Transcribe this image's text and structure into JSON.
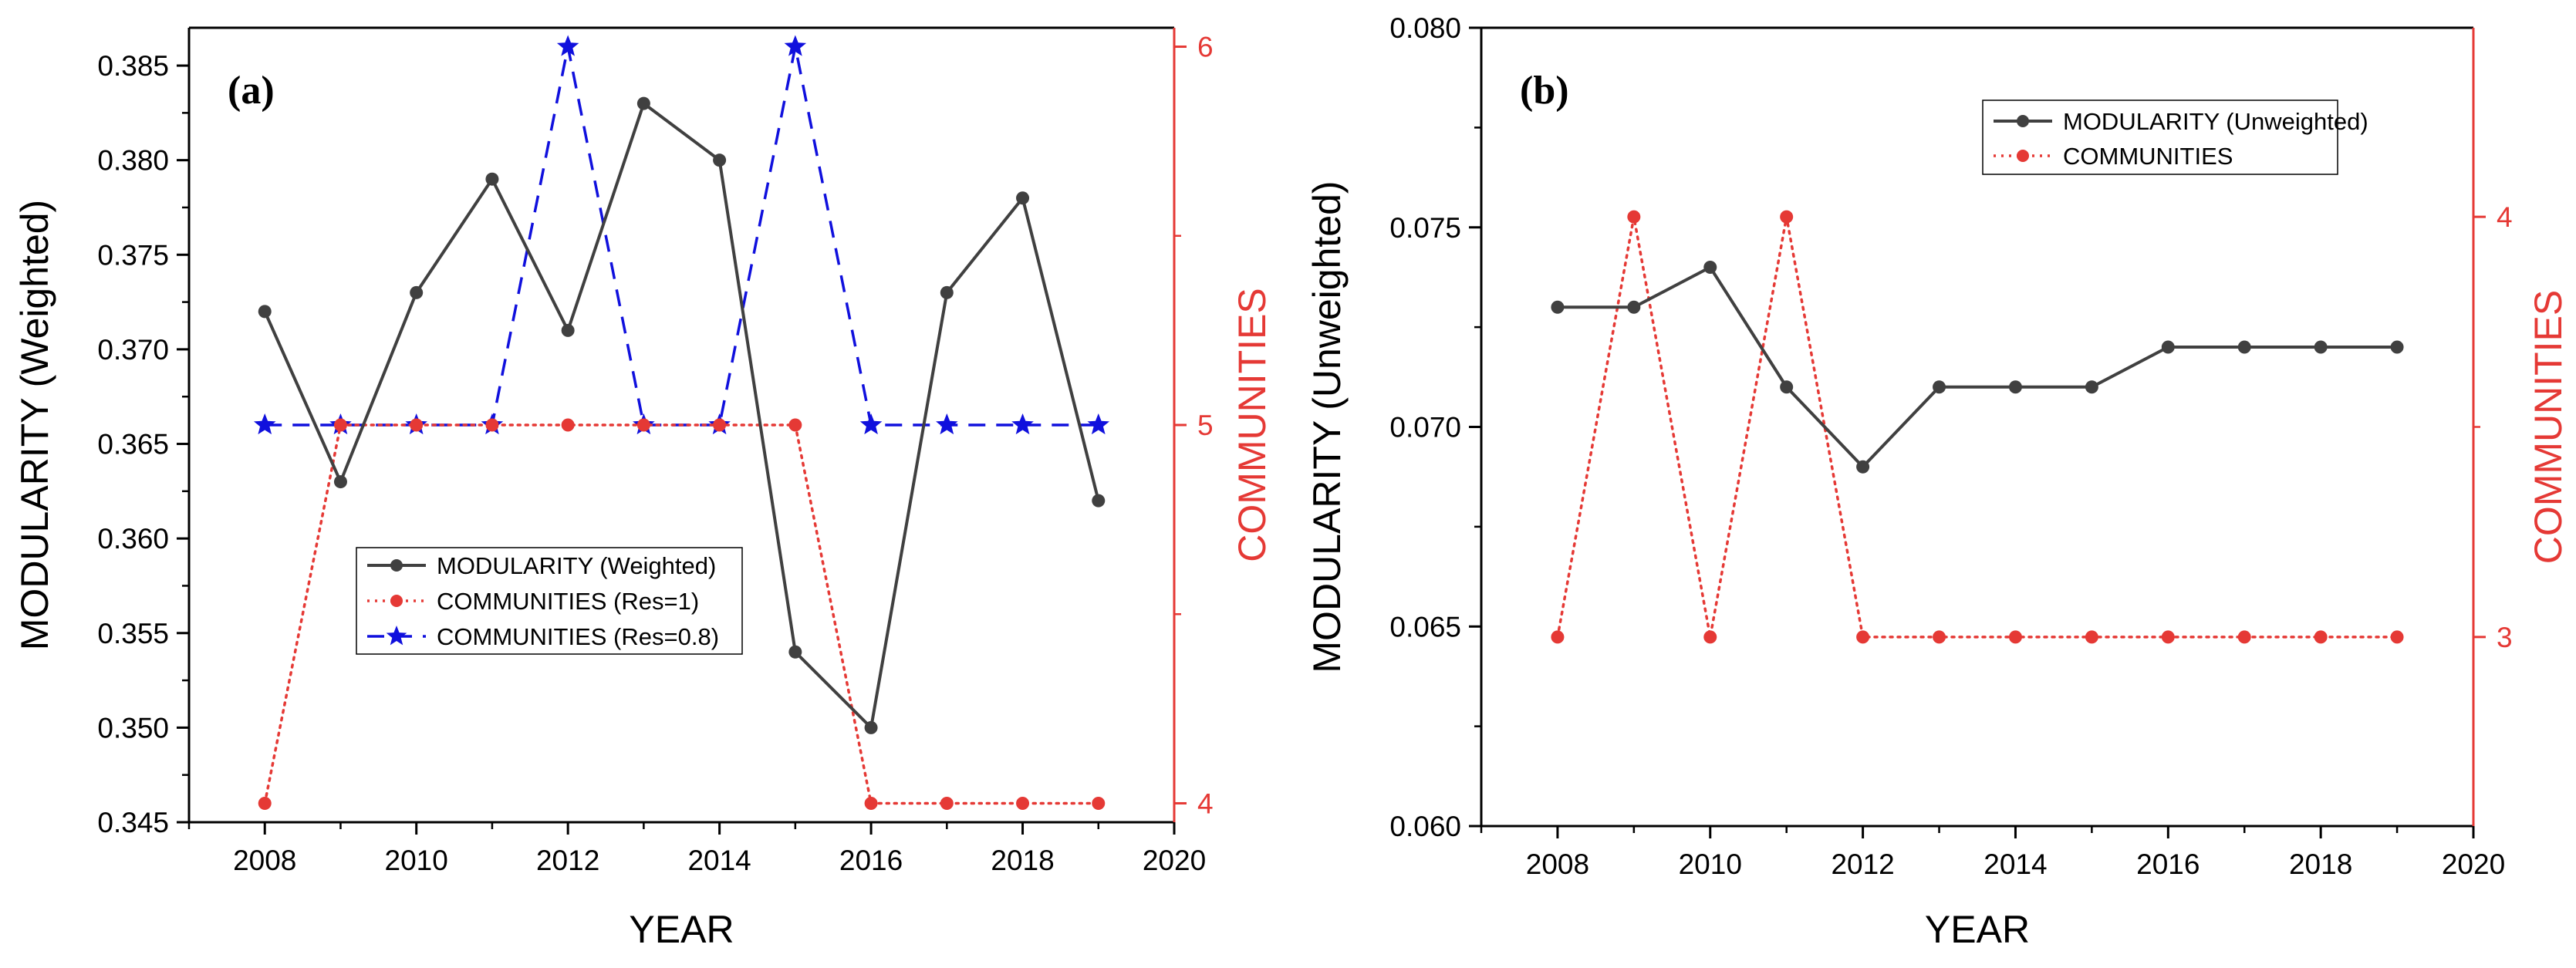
{
  "colors": {
    "modularity": "#404040",
    "communities": "#e53935",
    "communities_alt": "#1010dd",
    "axis": "#000000",
    "right_axis": "#e53935"
  },
  "chart_data": [
    {
      "type": "line",
      "panel_label": "(a)",
      "xlabel": "YEAR",
      "ylabel": "MODULARITY (Weighted)",
      "y2label": "COMMUNITIES",
      "xlim": [
        2007,
        2020
      ],
      "ylim": [
        0.345,
        0.387
      ],
      "y2lim": [
        3.95,
        6.05
      ],
      "x_ticks": [
        2008,
        2010,
        2012,
        2014,
        2016,
        2018,
        2020
      ],
      "x_tick_labels": [
        "2008",
        "2010",
        "2012",
        "2014",
        "2016",
        "2018",
        "2020"
      ],
      "y_ticks": [
        0.345,
        0.35,
        0.355,
        0.36,
        0.365,
        0.37,
        0.375,
        0.38,
        0.385
      ],
      "y_tick_labels": [
        "0.345",
        "0.350",
        "0.355",
        "0.360",
        "0.365",
        "0.370",
        "0.375",
        "0.380",
        "0.385"
      ],
      "y2_ticks": [
        4,
        5,
        6
      ],
      "y2_tick_labels": [
        "4",
        "5",
        "6"
      ],
      "grid": false,
      "legend_position": "center",
      "x": [
        2008,
        2009,
        2010,
        2011,
        2012,
        2013,
        2014,
        2015,
        2016,
        2017,
        2018,
        2019
      ],
      "series": [
        {
          "name": "MODULARITY (Weighted)",
          "axis": "left",
          "style": "solid",
          "marker": "circle",
          "color": "#404040",
          "values": [
            0.372,
            0.363,
            0.373,
            0.379,
            0.371,
            0.383,
            0.38,
            0.354,
            0.35,
            0.373,
            0.378,
            0.362
          ]
        },
        {
          "name": "COMMUNITIES (Res=1)",
          "axis": "right",
          "style": "dotted",
          "marker": "circle",
          "color": "#e53935",
          "values": [
            4,
            5,
            5,
            5,
            5,
            5,
            5,
            5,
            4,
            4,
            4,
            4
          ]
        },
        {
          "name": "COMMUNITIES (Res=0.8)",
          "axis": "right",
          "style": "dashed",
          "marker": "star",
          "color": "#1010dd",
          "values": [
            5,
            5,
            5,
            5,
            6,
            5,
            5,
            6,
            5,
            5,
            5,
            5
          ]
        }
      ]
    },
    {
      "type": "line",
      "panel_label": "(b)",
      "xlabel": "YEAR",
      "ylabel": "MODULARITY (Unweighted)",
      "y2label": "COMMUNITIES",
      "xlim": [
        2007,
        2020
      ],
      "ylim": [
        0.06,
        0.08
      ],
      "y2lim": [
        2.55,
        4.45
      ],
      "x_ticks": [
        2008,
        2010,
        2012,
        2014,
        2016,
        2018,
        2020
      ],
      "x_tick_labels": [
        "2008",
        "2010",
        "2012",
        "2014",
        "2016",
        "2018",
        "2020"
      ],
      "y_ticks": [
        0.06,
        0.065,
        0.07,
        0.075,
        0.08
      ],
      "y_tick_labels": [
        "0.060",
        "0.065",
        "0.070",
        "0.075",
        "0.080"
      ],
      "y2_ticks": [
        3,
        4
      ],
      "y2_tick_labels": [
        "3",
        "4"
      ],
      "grid": false,
      "legend_position": "top-right",
      "x": [
        2008,
        2009,
        2010,
        2011,
        2012,
        2013,
        2014,
        2015,
        2016,
        2017,
        2018,
        2019
      ],
      "series": [
        {
          "name": "MODULARITY (Unweighted)",
          "axis": "left",
          "style": "solid",
          "marker": "circle",
          "color": "#404040",
          "values": [
            0.073,
            0.073,
            0.074,
            0.071,
            0.069,
            0.071,
            0.071,
            0.071,
            0.072,
            0.072,
            0.072,
            0.072
          ]
        },
        {
          "name": "COMMUNITIES",
          "axis": "right",
          "style": "dotted",
          "marker": "circle",
          "color": "#e53935",
          "values": [
            3,
            4,
            3,
            4,
            3,
            3,
            3,
            3,
            3,
            3,
            3,
            3
          ]
        }
      ]
    }
  ]
}
